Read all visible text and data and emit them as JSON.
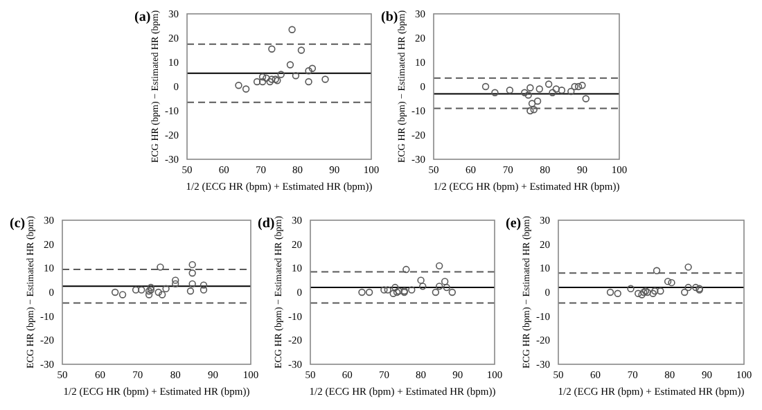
{
  "chart_data": [
    {
      "type": "scatter",
      "title": "(a)",
      "xlabel": "1/2 (ECG HR (bpm) + Estimated HR (bpm))",
      "ylabel": "ECG HR (bpm) − Estimated HR (bpm)",
      "xlim": [
        50,
        100
      ],
      "ylim": [
        -30,
        30
      ],
      "xticks": [
        50,
        60,
        70,
        80,
        90,
        100
      ],
      "yticks": [
        -30,
        -20,
        -10,
        0,
        10,
        20,
        30
      ],
      "marker": "circle",
      "grid": false,
      "series": [
        {
          "color": "#595959",
          "x": [
            64,
            66,
            69,
            70.5,
            70.5,
            71.5,
            72.5,
            73,
            73,
            74,
            74.5,
            75.5,
            78,
            78.5,
            79.5,
            81,
            83,
            83,
            84,
            87.5
          ],
          "values": [
            0.5,
            -1,
            2,
            2,
            4,
            3.5,
            2,
            3,
            15.5,
            3,
            2.5,
            5,
            9,
            23.5,
            4.5,
            15,
            6.5,
            2,
            7.5,
            3
          ]
        }
      ],
      "ref_lines": [
        {
          "axis": "y",
          "value": 5.5,
          "color": "#000000",
          "line_style": "solid"
        },
        {
          "axis": "y",
          "value": 17.5,
          "color": "#595959",
          "line_style": "dashed"
        },
        {
          "axis": "y",
          "value": -6.5,
          "color": "#595959",
          "line_style": "dashed"
        }
      ]
    },
    {
      "type": "scatter",
      "title": "(b)",
      "xlabel": "1/2 (ECG HR (bpm) + Estimated HR (bpm))",
      "ylabel": "ECG HR (bpm) − Estimated HR (bpm)",
      "xlim": [
        50,
        100
      ],
      "ylim": [
        -30,
        30
      ],
      "xticks": [
        50,
        60,
        70,
        80,
        90,
        100
      ],
      "yticks": [
        -30,
        -20,
        -10,
        0,
        10,
        20,
        30
      ],
      "marker": "circle",
      "grid": false,
      "series": [
        {
          "color": "#595959",
          "x": [
            64,
            66.5,
            70.5,
            74.5,
            75.5,
            76,
            76,
            76.5,
            77,
            78,
            78.5,
            81,
            82,
            83,
            84.5,
            87,
            88,
            89,
            90,
            91
          ],
          "values": [
            0,
            -2.5,
            -1.5,
            -2.5,
            -3.5,
            -0.5,
            -10,
            -7,
            -9.5,
            -6,
            -1,
            1,
            -2.5,
            -1,
            -1.5,
            -2,
            0,
            0,
            0.5,
            -5
          ]
        }
      ],
      "ref_lines": [
        {
          "axis": "y",
          "value": -3,
          "color": "#000000",
          "line_style": "solid"
        },
        {
          "axis": "y",
          "value": 3.5,
          "color": "#595959",
          "line_style": "dashed"
        },
        {
          "axis": "y",
          "value": -9,
          "color": "#595959",
          "line_style": "dashed"
        }
      ]
    },
    {
      "type": "scatter",
      "title": "(c)",
      "xlabel": "1/2 (ECG HR (bpm) + Estimated HR (bpm))",
      "ylabel": "ECG HR (bpm) − Estimated HR (bpm)",
      "xlim": [
        50,
        100
      ],
      "ylim": [
        -30,
        30
      ],
      "xticks": [
        50,
        60,
        70,
        80,
        90,
        100
      ],
      "yticks": [
        -30,
        -20,
        -10,
        0,
        10,
        20,
        30
      ],
      "marker": "circle",
      "grid": false,
      "series": [
        {
          "color": "#595959",
          "x": [
            64,
            66,
            69.5,
            71,
            73,
            73,
            73.5,
            73.5,
            75.5,
            76,
            76.5,
            77.5,
            80,
            80,
            84,
            84.5,
            84.5,
            84.5,
            87.5,
            87.5
          ],
          "values": [
            0,
            -1,
            1,
            1,
            -1,
            0.5,
            1,
            2,
            0,
            10.5,
            -1,
            1.5,
            5,
            3.5,
            0.5,
            3.5,
            8,
            11.5,
            3,
            1
          ]
        }
      ],
      "ref_lines": [
        {
          "axis": "y",
          "value": 2.5,
          "color": "#000000",
          "line_style": "solid"
        },
        {
          "axis": "y",
          "value": 9.5,
          "color": "#595959",
          "line_style": "dashed"
        },
        {
          "axis": "y",
          "value": -4.5,
          "color": "#595959",
          "line_style": "dashed"
        }
      ]
    },
    {
      "type": "scatter",
      "title": "(d)",
      "xlabel": "1/2 (ECG HR (bpm) + Estimated HR (bpm))",
      "ylabel": "ECG HR (bpm) − Estimated HR (bpm)",
      "xlim": [
        50,
        100
      ],
      "ylim": [
        -30,
        30
      ],
      "xticks": [
        50,
        60,
        70,
        80,
        90,
        100
      ],
      "yticks": [
        -30,
        -20,
        -10,
        0,
        10,
        20,
        30
      ],
      "marker": "circle",
      "grid": false,
      "series": [
        {
          "color": "#595959",
          "x": [
            64,
            66,
            70,
            71,
            72.5,
            73,
            73.5,
            74,
            75.5,
            75.5,
            76,
            77.5,
            80,
            80.5,
            84,
            85,
            85,
            86.5,
            87,
            88.5
          ],
          "values": [
            0,
            0,
            1,
            1,
            -0.5,
            2,
            0,
            0.5,
            0,
            0.5,
            9.5,
            1,
            5,
            2.5,
            0,
            11,
            2.5,
            4.5,
            2,
            0
          ]
        }
      ],
      "ref_lines": [
        {
          "axis": "y",
          "value": 2,
          "color": "#000000",
          "line_style": "solid"
        },
        {
          "axis": "y",
          "value": 8.5,
          "color": "#595959",
          "line_style": "dashed"
        },
        {
          "axis": "y",
          "value": -4.5,
          "color": "#595959",
          "line_style": "dashed"
        }
      ]
    },
    {
      "type": "scatter",
      "title": "(e)",
      "xlabel": "1/2 (ECG HR (bpm) + Estimated HR (bpm))",
      "ylabel": "ECG HR (bpm) − Estimated HR (bpm)",
      "xlim": [
        50,
        100
      ],
      "ylim": [
        -30,
        30
      ],
      "xticks": [
        50,
        60,
        70,
        80,
        90,
        100
      ],
      "yticks": [
        -30,
        -20,
        -10,
        0,
        10,
        20,
        30
      ],
      "marker": "circle",
      "grid": false,
      "series": [
        {
          "color": "#595959",
          "x": [
            64,
            66,
            69.5,
            71.5,
            72.5,
            73,
            73.5,
            74,
            75.5,
            76,
            76.5,
            77.5,
            79.5,
            80.5,
            84,
            85,
            85,
            87,
            88,
            88
          ],
          "values": [
            0,
            -0.5,
            1.5,
            -0.5,
            -1,
            0,
            0.5,
            0,
            -0.5,
            0.5,
            9,
            0.5,
            4.5,
            4,
            0,
            10.5,
            2,
            2,
            1.5,
            1
          ]
        }
      ],
      "ref_lines": [
        {
          "axis": "y",
          "value": 2,
          "color": "#000000",
          "line_style": "solid"
        },
        {
          "axis": "y",
          "value": 8,
          "color": "#595959",
          "line_style": "dashed"
        },
        {
          "axis": "y",
          "value": -4.5,
          "color": "#595959",
          "line_style": "dashed"
        }
      ]
    }
  ]
}
